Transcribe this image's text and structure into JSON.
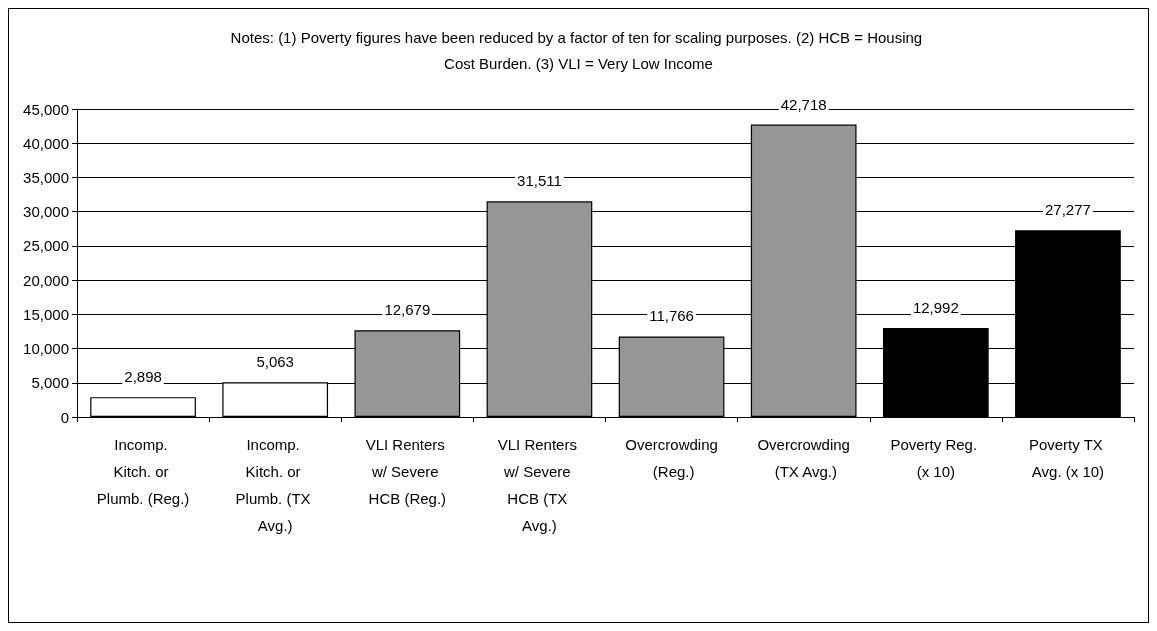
{
  "chart_data": {
    "type": "bar",
    "title": "Notes: (1) Poverty figures have been reduced by a factor of ten for scaling purposes. (2) HCB = Housing Cost Burden. (3) VLI = Very Low Income",
    "categories": [
      "Incomp. Kitch. or Plumb. (Reg.)",
      "Incomp. Kitch. or Plumb. (TX Avg.)",
      "VLI Renters w/ Severe HCB (Reg.)",
      "VLI Renters w/ Severe HCB (TX Avg.)",
      "Overcrowding (Reg.)",
      "Overcrowding (TX Avg.)",
      "Poverty Reg. (x 10)",
      "Poverty TX Avg. (x 10)"
    ],
    "values": [
      2898,
      5063,
      12679,
      31511,
      11766,
      42718,
      12992,
      27277
    ],
    "value_labels": [
      "2,898",
      "5,063",
      "12,679",
      "31,511",
      "11,766",
      "42,718",
      "12,992",
      "27,277"
    ],
    "colors": [
      "#ffffff",
      "#ffffff",
      "#969696",
      "#969696",
      "#969696",
      "#969696",
      "#000000",
      "#000000"
    ],
    "ylim": [
      0,
      45000
    ],
    "yticks": [
      {
        "value": 0,
        "label": "0"
      },
      {
        "value": 5000,
        "label": "5,000"
      },
      {
        "value": 10000,
        "label": "10,000"
      },
      {
        "value": 15000,
        "label": "15,000"
      },
      {
        "value": 20000,
        "label": "20,000"
      },
      {
        "value": 25000,
        "label": "25,000"
      },
      {
        "value": 30000,
        "label": "30,000"
      },
      {
        "value": 35000,
        "label": "35,000"
      },
      {
        "value": 40000,
        "label": "40,000"
      },
      {
        "value": 45000,
        "label": "45,000"
      }
    ],
    "grid": "y"
  }
}
